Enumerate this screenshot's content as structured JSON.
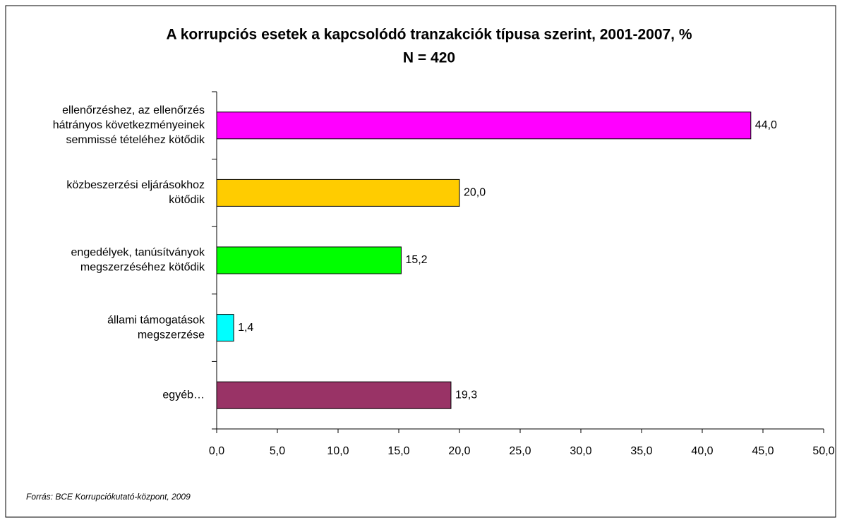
{
  "chart_data": {
    "type": "bar",
    "orientation": "horizontal",
    "title": "A korrupciós esetek a kapcsolódó tranzakciók típusa szerint, 2001-2007, %",
    "subtitle": "N = 420",
    "categories": [
      [
        "ellenőrzéshez, az ellenőrzés",
        "hátrányos következményeinek",
        "semmissé tételéhez kötődik"
      ],
      [
        "közbeszerzési eljárásokhoz",
        "kötődik"
      ],
      [
        "engedélyek, tanúsítványok",
        "megszerzéséhez kötődik"
      ],
      [
        "állami támogatások",
        "megszerzése"
      ],
      [
        "egyéb…"
      ]
    ],
    "values": [
      44.0,
      20.0,
      15.2,
      1.4,
      19.3
    ],
    "value_labels": [
      "44,0",
      "20,0",
      "15,2",
      "1,4",
      "19,3"
    ],
    "colors": [
      "#ff00ff",
      "#ffcc00",
      "#00ff00",
      "#00ffff",
      "#993366"
    ],
    "xlim": [
      0,
      50
    ],
    "xticks": [
      {
        "value": 0,
        "label": "0,0"
      },
      {
        "value": 5,
        "label": "5,0"
      },
      {
        "value": 10,
        "label": "10,0"
      },
      {
        "value": 15,
        "label": "15,0"
      },
      {
        "value": 20,
        "label": "20,0"
      },
      {
        "value": 25,
        "label": "25,0"
      },
      {
        "value": 30,
        "label": "30,0"
      },
      {
        "value": 35,
        "label": "35,0"
      },
      {
        "value": 40,
        "label": "40,0"
      },
      {
        "value": 45,
        "label": "45,0"
      },
      {
        "value": 50,
        "label": "50,0"
      }
    ],
    "source": "Forrás: BCE Korrupciókutató-központ, 2009"
  }
}
